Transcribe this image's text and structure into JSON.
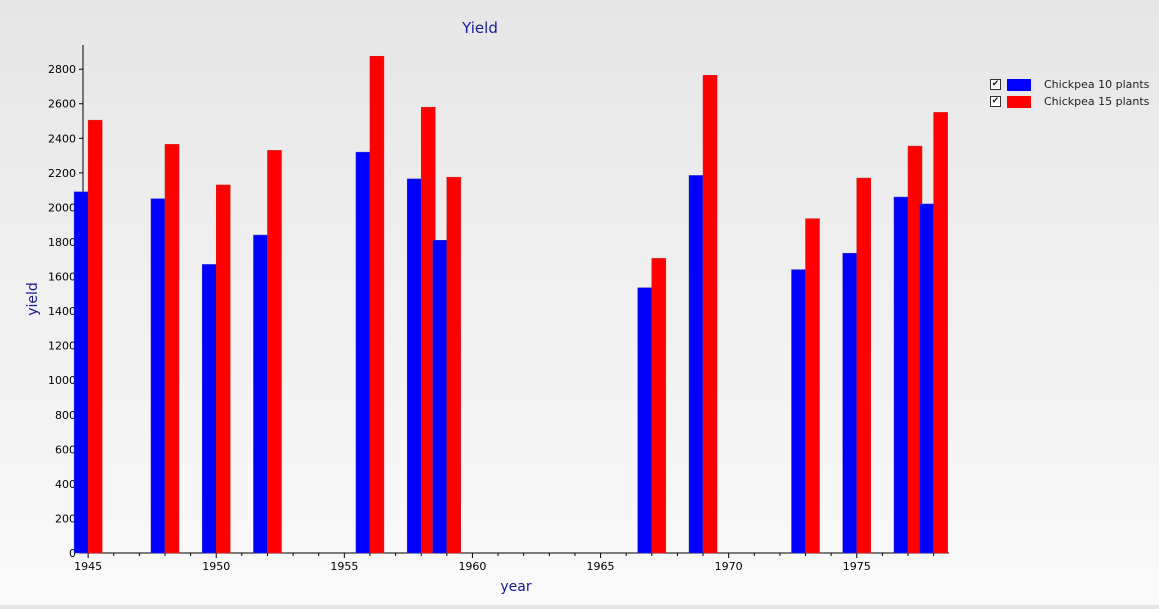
{
  "chart_data": {
    "type": "bar",
    "title": "Yield",
    "xlabel": "year",
    "ylabel": "yield",
    "x_ticks": [
      1945,
      1950,
      1955,
      1960,
      1965,
      1970,
      1975
    ],
    "y_ticks": [
      0,
      200,
      400,
      600,
      800,
      1000,
      1200,
      1400,
      1600,
      1800,
      2000,
      2200,
      2400,
      2600,
      2800
    ],
    "xlim": [
      1944.8,
      1978.6
    ],
    "ylim": [
      0,
      2940
    ],
    "grid": false,
    "legend_position": "top-right",
    "categories": [
      1945,
      1948,
      1950,
      1952,
      1956,
      1958,
      1959,
      1967,
      1969,
      1973,
      1975,
      1977,
      1978
    ],
    "series": [
      {
        "name": "Chickpea 10 plants",
        "color": "#0000ff",
        "values": [
          2090,
          2050,
          1670,
          1840,
          2320,
          2165,
          1810,
          1535,
          2185,
          1640,
          1735,
          2060,
          2020
        ]
      },
      {
        "name": "Chickpea 15 plants",
        "color": "#ff0000",
        "values": [
          2505,
          2365,
          2130,
          2330,
          2875,
          2580,
          2175,
          1705,
          2765,
          1935,
          2170,
          2355,
          2550
        ]
      }
    ]
  },
  "legend": {
    "items": [
      {
        "label": "Chickpea 10 plants",
        "checked": "✔",
        "color": "#0000ff"
      },
      {
        "label": "Chickpea 15 plants",
        "checked": "✔",
        "color": "#ff0000"
      }
    ]
  }
}
